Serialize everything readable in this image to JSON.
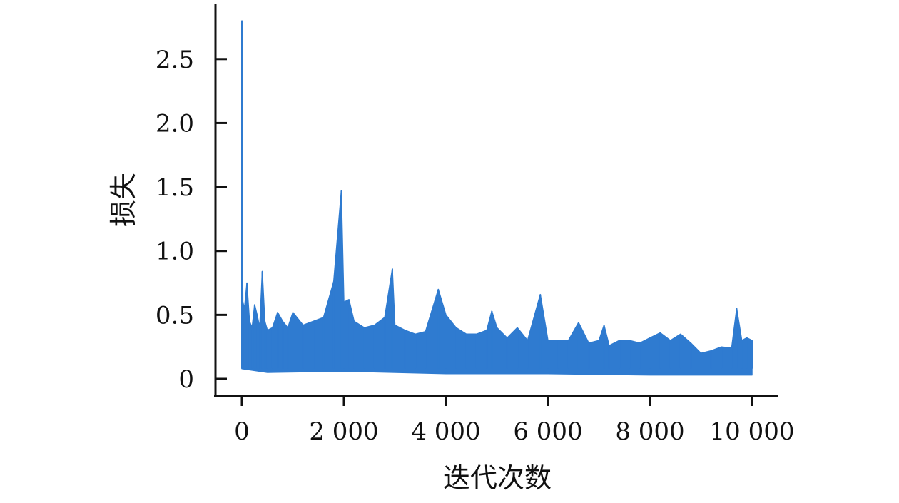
{
  "chart_data": {
    "type": "line",
    "title": "",
    "xlabel": "迭代次数",
    "ylabel": "损失",
    "xlim": [
      0,
      10000
    ],
    "ylim": [
      0,
      2.8
    ],
    "xticks": [
      0,
      2000,
      4000,
      6000,
      8000,
      10000
    ],
    "xtick_labels": [
      "0",
      "2 000",
      "4 000",
      "6 000",
      "8 000",
      "10 000"
    ],
    "yticks": [
      0,
      0.5,
      1.0,
      1.5,
      2.0,
      2.5
    ],
    "ytick_labels": [
      "0",
      "0.5",
      "1.0",
      "1.5",
      "2.0",
      "2.5"
    ],
    "grid": false,
    "legend": "none",
    "series": [
      {
        "color": "#2f7bd0",
        "x": [
          0,
          10,
          20,
          50,
          100,
          150,
          200,
          250,
          300,
          350,
          400,
          450,
          500,
          600,
          700,
          800,
          900,
          1000,
          1200,
          1400,
          1600,
          1800,
          1950,
          2000,
          2100,
          2200,
          2400,
          2600,
          2800,
          2950,
          3000,
          3200,
          3400,
          3600,
          3850,
          4000,
          4200,
          4400,
          4600,
          4800,
          4900,
          5000,
          5200,
          5400,
          5600,
          5850,
          6000,
          6200,
          6400,
          6600,
          6800,
          7000,
          7100,
          7200,
          7400,
          7600,
          7800,
          8000,
          8200,
          8400,
          8600,
          8800,
          9000,
          9200,
          9400,
          9600,
          9700,
          9800,
          9900,
          10000
        ],
        "y": [
          2.8,
          1.15,
          0.6,
          0.55,
          0.75,
          0.45,
          0.4,
          0.58,
          0.5,
          0.4,
          0.84,
          0.45,
          0.38,
          0.4,
          0.52,
          0.45,
          0.4,
          0.52,
          0.42,
          0.45,
          0.48,
          0.76,
          1.47,
          0.6,
          0.62,
          0.45,
          0.4,
          0.42,
          0.48,
          0.86,
          0.42,
          0.38,
          0.35,
          0.37,
          0.7,
          0.5,
          0.4,
          0.35,
          0.35,
          0.38,
          0.53,
          0.4,
          0.32,
          0.4,
          0.3,
          0.66,
          0.3,
          0.3,
          0.3,
          0.44,
          0.28,
          0.3,
          0.42,
          0.26,
          0.3,
          0.3,
          0.28,
          0.32,
          0.36,
          0.3,
          0.35,
          0.28,
          0.2,
          0.22,
          0.25,
          0.24,
          0.55,
          0.3,
          0.32,
          0.3
        ]
      }
    ]
  }
}
